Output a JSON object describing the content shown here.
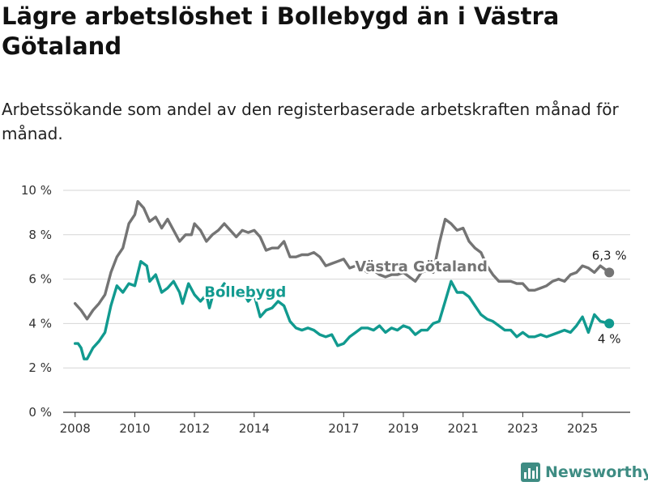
{
  "title": "Lägre arbetslöshet i Bollebygd än i Västra Götaland",
  "subtitle": "Arbetssökande som andel av den registerbaserade arbetskraften månad för månad.",
  "brand": "Newsworthy",
  "colors": {
    "bollebygd": "#119a8f",
    "vastra": "#747474",
    "grid": "#d6d6d6",
    "brand": "#3e8c83"
  },
  "chart_data": {
    "type": "line",
    "title": "Lägre arbetslöshet i Bollebygd än i Västra Götaland",
    "xlabel": "",
    "ylabel": "",
    "x_ticks": [
      "2008",
      "2010",
      "2012",
      "2014",
      "2017",
      "2019",
      "2021",
      "2023",
      "2025"
    ],
    "y_ticks": [
      "0 %",
      "2 %",
      "4 %",
      "6 %",
      "8 %",
      "10 %"
    ],
    "ylim": [
      0,
      10
    ],
    "xlim": [
      2007.6,
      2026.6
    ],
    "series": [
      {
        "name": "Västra Götaland",
        "end_label": "6,3 %",
        "points": [
          [
            2008.0,
            4.9
          ],
          [
            2008.2,
            4.6
          ],
          [
            2008.4,
            4.2
          ],
          [
            2008.6,
            4.6
          ],
          [
            2008.8,
            4.9
          ],
          [
            2009.0,
            5.3
          ],
          [
            2009.2,
            6.3
          ],
          [
            2009.4,
            7.0
          ],
          [
            2009.6,
            7.4
          ],
          [
            2009.8,
            8.5
          ],
          [
            2010.0,
            8.9
          ],
          [
            2010.1,
            9.5
          ],
          [
            2010.3,
            9.2
          ],
          [
            2010.5,
            8.6
          ],
          [
            2010.7,
            8.8
          ],
          [
            2010.9,
            8.3
          ],
          [
            2011.1,
            8.7
          ],
          [
            2011.3,
            8.2
          ],
          [
            2011.5,
            7.7
          ],
          [
            2011.7,
            8.0
          ],
          [
            2011.9,
            8.0
          ],
          [
            2012.0,
            8.5
          ],
          [
            2012.2,
            8.2
          ],
          [
            2012.4,
            7.7
          ],
          [
            2012.6,
            8.0
          ],
          [
            2012.8,
            8.2
          ],
          [
            2013.0,
            8.5
          ],
          [
            2013.2,
            8.2
          ],
          [
            2013.4,
            7.9
          ],
          [
            2013.6,
            8.2
          ],
          [
            2013.8,
            8.1
          ],
          [
            2014.0,
            8.2
          ],
          [
            2014.2,
            7.9
          ],
          [
            2014.4,
            7.3
          ],
          [
            2014.6,
            7.4
          ],
          [
            2014.8,
            7.4
          ],
          [
            2015.0,
            7.7
          ],
          [
            2015.2,
            7.0
          ],
          [
            2015.4,
            7.0
          ],
          [
            2015.6,
            7.1
          ],
          [
            2015.8,
            7.1
          ],
          [
            2016.0,
            7.2
          ],
          [
            2016.2,
            7.0
          ],
          [
            2016.4,
            6.6
          ],
          [
            2016.6,
            6.7
          ],
          [
            2016.8,
            6.8
          ],
          [
            2017.0,
            6.9
          ],
          [
            2017.2,
            6.5
          ],
          [
            2017.4,
            6.6
          ],
          [
            2017.6,
            6.5
          ],
          [
            2017.8,
            6.3
          ],
          [
            2018.0,
            6.4
          ],
          [
            2018.2,
            6.2
          ],
          [
            2018.4,
            6.1
          ],
          [
            2018.6,
            6.2
          ],
          [
            2018.8,
            6.2
          ],
          [
            2019.0,
            6.3
          ],
          [
            2019.2,
            6.1
          ],
          [
            2019.4,
            5.9
          ],
          [
            2019.6,
            6.3
          ],
          [
            2019.8,
            6.4
          ],
          [
            2020.0,
            6.3
          ],
          [
            2020.2,
            7.6
          ],
          [
            2020.4,
            8.7
          ],
          [
            2020.6,
            8.5
          ],
          [
            2020.8,
            8.2
          ],
          [
            2021.0,
            8.3
          ],
          [
            2021.2,
            7.7
          ],
          [
            2021.4,
            7.4
          ],
          [
            2021.6,
            7.2
          ],
          [
            2021.8,
            6.6
          ],
          [
            2022.0,
            6.2
          ],
          [
            2022.2,
            5.9
          ],
          [
            2022.4,
            5.9
          ],
          [
            2022.6,
            5.9
          ],
          [
            2022.8,
            5.8
          ],
          [
            2023.0,
            5.8
          ],
          [
            2023.2,
            5.5
          ],
          [
            2023.4,
            5.5
          ],
          [
            2023.6,
            5.6
          ],
          [
            2023.8,
            5.7
          ],
          [
            2024.0,
            5.9
          ],
          [
            2024.2,
            6.0
          ],
          [
            2024.4,
            5.9
          ],
          [
            2024.6,
            6.2
          ],
          [
            2024.8,
            6.3
          ],
          [
            2025.0,
            6.6
          ],
          [
            2025.2,
            6.5
          ],
          [
            2025.4,
            6.3
          ],
          [
            2025.6,
            6.6
          ],
          [
            2025.9,
            6.3
          ]
        ]
      },
      {
        "name": "Bollebygd",
        "end_label": "4 %",
        "points": [
          [
            2008.0,
            3.1
          ],
          [
            2008.1,
            3.1
          ],
          [
            2008.2,
            2.9
          ],
          [
            2008.3,
            2.4
          ],
          [
            2008.4,
            2.4
          ],
          [
            2008.6,
            2.9
          ],
          [
            2008.8,
            3.2
          ],
          [
            2009.0,
            3.6
          ],
          [
            2009.2,
            4.8
          ],
          [
            2009.4,
            5.7
          ],
          [
            2009.6,
            5.4
          ],
          [
            2009.8,
            5.8
          ],
          [
            2010.0,
            5.7
          ],
          [
            2010.2,
            6.8
          ],
          [
            2010.4,
            6.6
          ],
          [
            2010.5,
            5.9
          ],
          [
            2010.7,
            6.2
          ],
          [
            2010.9,
            5.4
          ],
          [
            2011.1,
            5.6
          ],
          [
            2011.3,
            5.9
          ],
          [
            2011.5,
            5.4
          ],
          [
            2011.6,
            4.9
          ],
          [
            2011.8,
            5.8
          ],
          [
            2012.0,
            5.3
          ],
          [
            2012.2,
            5.0
          ],
          [
            2012.4,
            5.3
          ],
          [
            2012.5,
            4.7
          ],
          [
            2012.6,
            5.2
          ],
          [
            2012.8,
            5.4
          ],
          [
            2013.0,
            5.8
          ],
          [
            2013.2,
            5.3
          ],
          [
            2013.4,
            5.2
          ],
          [
            2013.6,
            5.5
          ],
          [
            2013.8,
            5.0
          ],
          [
            2014.0,
            5.3
          ],
          [
            2014.2,
            4.3
          ],
          [
            2014.4,
            4.6
          ],
          [
            2014.6,
            4.7
          ],
          [
            2014.8,
            5.0
          ],
          [
            2015.0,
            4.8
          ],
          [
            2015.2,
            4.1
          ],
          [
            2015.4,
            3.8
          ],
          [
            2015.6,
            3.7
          ],
          [
            2015.8,
            3.8
          ],
          [
            2016.0,
            3.7
          ],
          [
            2016.2,
            3.5
          ],
          [
            2016.4,
            3.4
          ],
          [
            2016.6,
            3.5
          ],
          [
            2016.8,
            3.0
          ],
          [
            2017.0,
            3.1
          ],
          [
            2017.2,
            3.4
          ],
          [
            2017.4,
            3.6
          ],
          [
            2017.6,
            3.8
          ],
          [
            2017.8,
            3.8
          ],
          [
            2018.0,
            3.7
          ],
          [
            2018.2,
            3.9
          ],
          [
            2018.4,
            3.6
          ],
          [
            2018.6,
            3.8
          ],
          [
            2018.8,
            3.7
          ],
          [
            2019.0,
            3.9
          ],
          [
            2019.2,
            3.8
          ],
          [
            2019.4,
            3.5
          ],
          [
            2019.6,
            3.7
          ],
          [
            2019.8,
            3.7
          ],
          [
            2020.0,
            4.0
          ],
          [
            2020.2,
            4.1
          ],
          [
            2020.4,
            5.0
          ],
          [
            2020.6,
            5.9
          ],
          [
            2020.8,
            5.4
          ],
          [
            2021.0,
            5.4
          ],
          [
            2021.2,
            5.2
          ],
          [
            2021.4,
            4.8
          ],
          [
            2021.6,
            4.4
          ],
          [
            2021.8,
            4.2
          ],
          [
            2022.0,
            4.1
          ],
          [
            2022.2,
            3.9
          ],
          [
            2022.4,
            3.7
          ],
          [
            2022.6,
            3.7
          ],
          [
            2022.8,
            3.4
          ],
          [
            2023.0,
            3.6
          ],
          [
            2023.2,
            3.4
          ],
          [
            2023.4,
            3.4
          ],
          [
            2023.6,
            3.5
          ],
          [
            2023.8,
            3.4
          ],
          [
            2024.0,
            3.5
          ],
          [
            2024.2,
            3.6
          ],
          [
            2024.4,
            3.7
          ],
          [
            2024.6,
            3.6
          ],
          [
            2024.8,
            3.9
          ],
          [
            2025.0,
            4.3
          ],
          [
            2025.2,
            3.6
          ],
          [
            2025.4,
            4.4
          ],
          [
            2025.6,
            4.1
          ],
          [
            2025.9,
            4.0
          ]
        ]
      }
    ]
  }
}
